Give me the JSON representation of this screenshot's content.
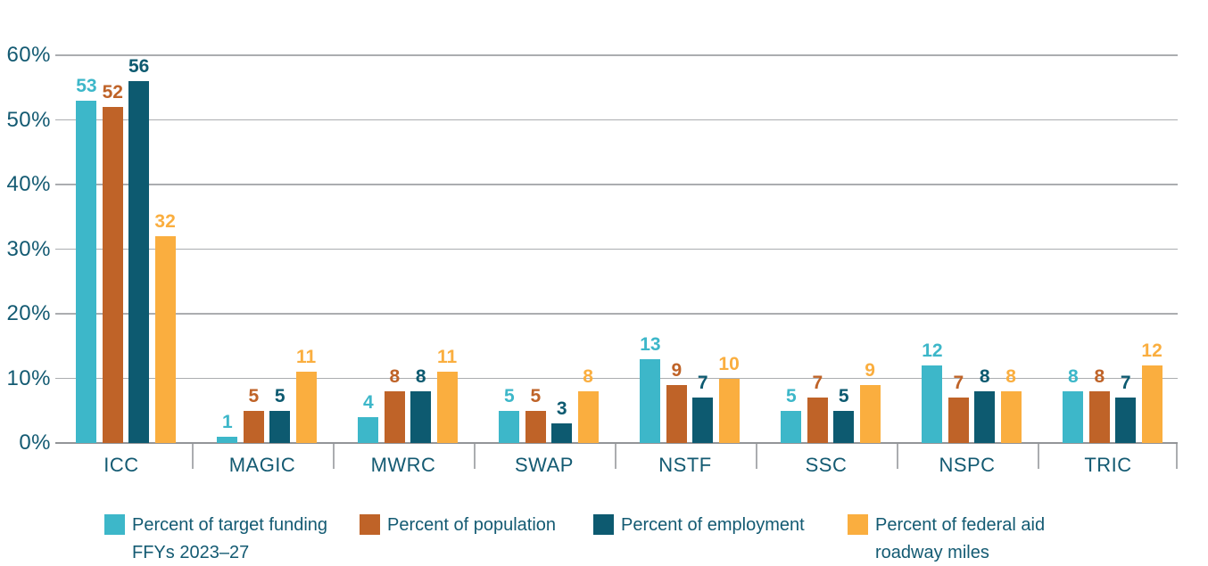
{
  "chart_data": {
    "type": "bar",
    "title": "",
    "categories": [
      "ICC",
      "MAGIC",
      "MWRC",
      "SWAP",
      "NSTF",
      "SSC",
      "NSPC",
      "TRIC"
    ],
    "series": [
      {
        "name": "Percent of target funding FFYs 2023–27",
        "color": "#3DB7C9",
        "values": [
          53,
          1,
          4,
          5,
          13,
          5,
          12,
          8
        ]
      },
      {
        "name": "Percent of population",
        "color": "#BF6328",
        "values": [
          52,
          5,
          8,
          5,
          9,
          7,
          7,
          8
        ]
      },
      {
        "name": "Percent of employment",
        "color": "#0D5A70",
        "values": [
          56,
          5,
          8,
          3,
          7,
          5,
          8,
          7
        ]
      },
      {
        "name": "Percent of federal aid roadway miles",
        "color": "#FAAE3F",
        "values": [
          32,
          11,
          11,
          8,
          10,
          9,
          8,
          12
        ]
      }
    ],
    "xlabel": "",
    "ylabel": "",
    "ylim": [
      0,
      60
    ],
    "ytick_step": 10,
    "ytick_labels": [
      "0%",
      "10%",
      "20%",
      "30%",
      "40%",
      "50%",
      "60%"
    ],
    "grid": true,
    "value_labels": true,
    "legend_position": "bottom"
  },
  "legend": {
    "items": [
      {
        "lines": [
          "Percent of target funding",
          "FFYs 2023–27"
        ],
        "color": "#3DB7C9"
      },
      {
        "lines": [
          "Percent of population"
        ],
        "color": "#BF6328"
      },
      {
        "lines": [
          "Percent of employment"
        ],
        "color": "#0D5A70"
      },
      {
        "lines": [
          "Percent of federal aid",
          "roadway miles"
        ],
        "color": "#FAAE3F"
      }
    ]
  },
  "colors": {
    "axis_text": "#135A72",
    "value_label_teal": "#3DB7C9",
    "value_label_rust": "#BF6328",
    "value_label_dark": "#0D5A70",
    "value_label_amber": "#FAAE3F",
    "gridline": "#ABADB0",
    "axis_line": "#939598",
    "background": "#FFFFFF"
  }
}
